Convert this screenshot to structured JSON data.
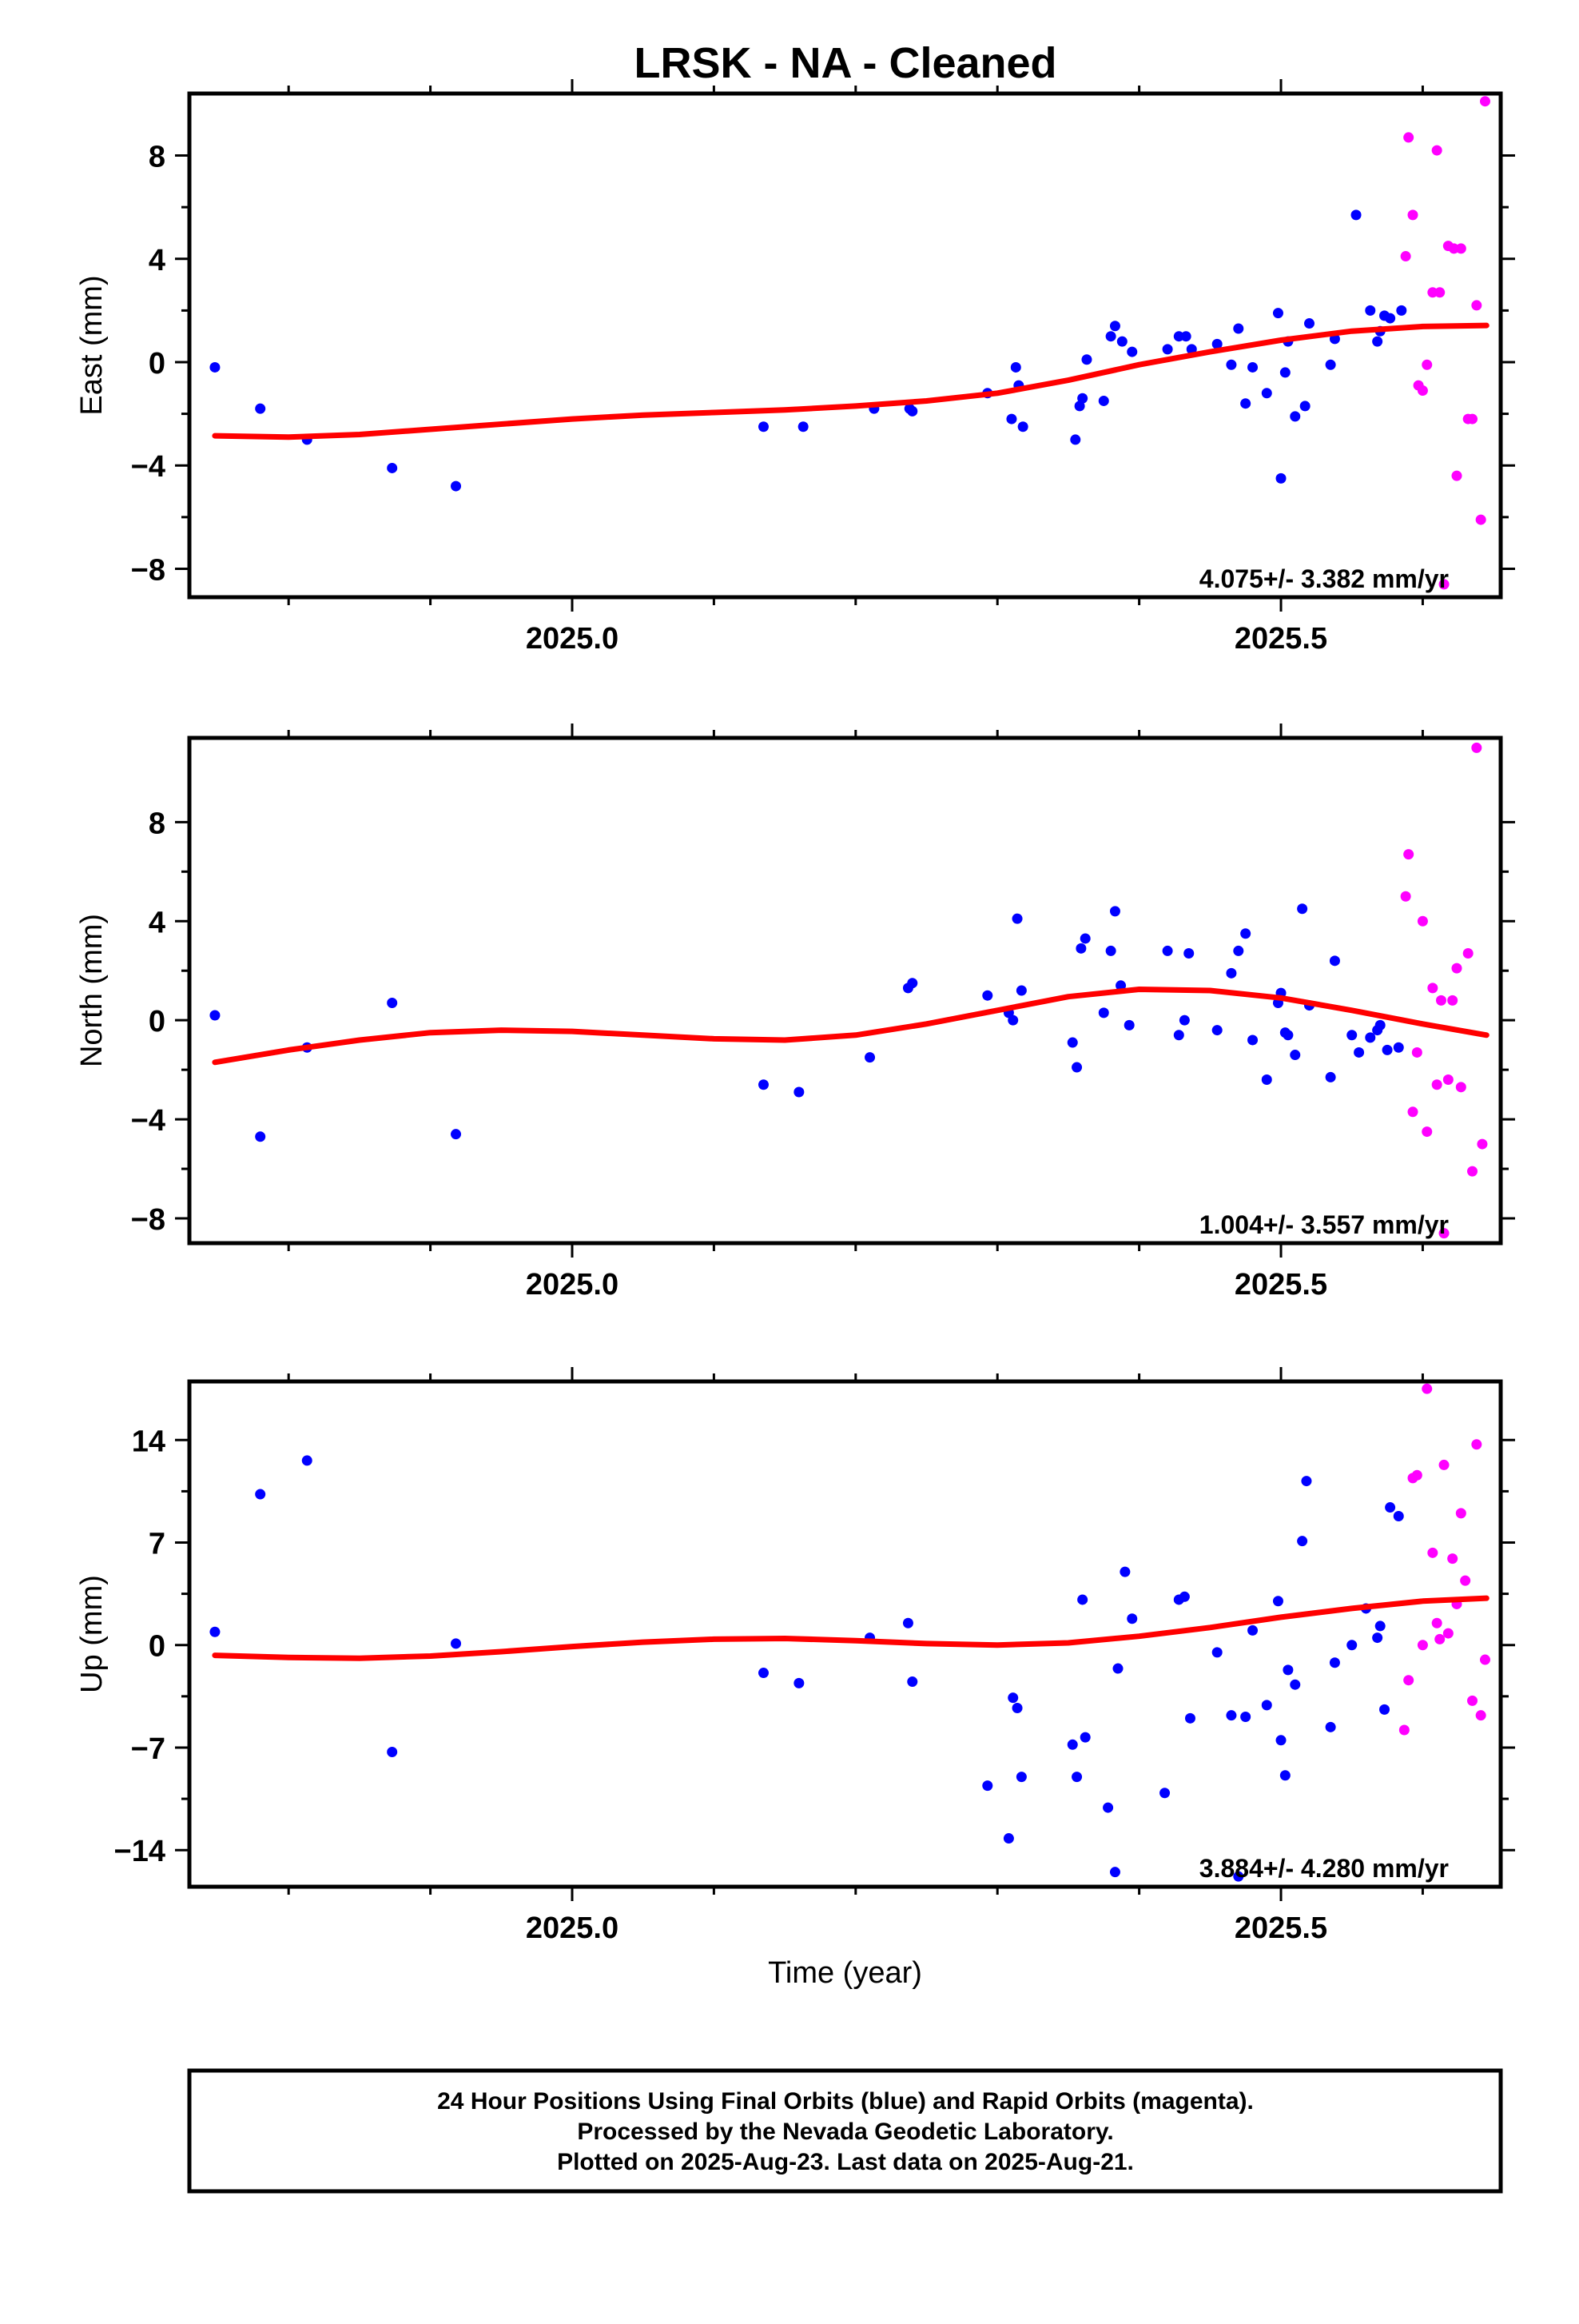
{
  "title": "LRSK  - NA - Cleaned",
  "colors": {
    "final": "#0000ff",
    "rapid": "#ff00ff",
    "fit": "#ff0000",
    "frame": "#000000"
  },
  "chart_data": [
    {
      "type": "scatter",
      "ylabel": "East (mm)",
      "xlabel": "",
      "rate": "4.075+/- 3.382 mm/yr",
      "xlim": [
        2024.73,
        2025.655
      ],
      "ylim": [
        -9.1,
        10.4
      ],
      "yticks": [
        -8,
        -4,
        0,
        4,
        8
      ],
      "xticks": [
        2025.0,
        2025.5
      ],
      "series": [
        {
          "color": "blue",
          "points": [
            [
              2024.748,
              -0.2
            ],
            [
              2024.78,
              -1.8
            ],
            [
              2024.813,
              -3.0
            ],
            [
              2024.873,
              -4.1
            ],
            [
              2024.918,
              -4.8
            ],
            [
              2025.135,
              -2.5
            ],
            [
              2025.163,
              -2.5
            ],
            [
              2025.213,
              -1.8
            ],
            [
              2025.238,
              -1.8
            ],
            [
              2025.24,
              -1.9
            ],
            [
              2025.293,
              -1.2
            ],
            [
              2025.31,
              -2.2
            ],
            [
              2025.313,
              -0.2
            ],
            [
              2025.315,
              -0.9
            ],
            [
              2025.318,
              -2.5
            ],
            [
              2025.355,
              -3.0
            ],
            [
              2025.358,
              -1.7
            ],
            [
              2025.36,
              -1.4
            ],
            [
              2025.363,
              0.1
            ],
            [
              2025.375,
              -1.5
            ],
            [
              2025.38,
              1.0
            ],
            [
              2025.383,
              1.4
            ],
            [
              2025.388,
              0.8
            ],
            [
              2025.395,
              0.4
            ],
            [
              2025.42,
              0.5
            ],
            [
              2025.428,
              1.0
            ],
            [
              2025.433,
              1.0
            ],
            [
              2025.437,
              0.5
            ],
            [
              2025.455,
              0.7
            ],
            [
              2025.465,
              -0.1
            ],
            [
              2025.47,
              1.3
            ],
            [
              2025.475,
              -1.6
            ],
            [
              2025.48,
              -0.2
            ],
            [
              2025.49,
              -1.2
            ],
            [
              2025.498,
              1.9
            ],
            [
              2025.5,
              -4.5
            ],
            [
              2025.503,
              -0.4
            ],
            [
              2025.505,
              0.8
            ],
            [
              2025.51,
              -2.1
            ],
            [
              2025.517,
              -1.7
            ],
            [
              2025.52,
              1.5
            ],
            [
              2025.535,
              -0.1
            ],
            [
              2025.538,
              0.9
            ],
            [
              2025.553,
              5.7
            ],
            [
              2025.563,
              2.0
            ],
            [
              2025.568,
              0.8
            ],
            [
              2025.57,
              1.2
            ],
            [
              2025.573,
              1.8
            ],
            [
              2025.577,
              1.7
            ],
            [
              2025.585,
              2.0
            ]
          ]
        },
        {
          "color": "magenta",
          "points": [
            [
              2025.588,
              4.1
            ],
            [
              2025.59,
              8.7
            ],
            [
              2025.593,
              5.7
            ],
            [
              2025.597,
              -0.9
            ],
            [
              2025.6,
              -1.1
            ],
            [
              2025.603,
              -0.1
            ],
            [
              2025.607,
              2.7
            ],
            [
              2025.61,
              8.2
            ],
            [
              2025.612,
              2.7
            ],
            [
              2025.615,
              -8.6
            ],
            [
              2025.618,
              4.5
            ],
            [
              2025.622,
              4.4
            ],
            [
              2025.624,
              -4.4
            ],
            [
              2025.627,
              4.4
            ],
            [
              2025.632,
              -2.2
            ],
            [
              2025.635,
              -2.2
            ],
            [
              2025.638,
              2.2
            ],
            [
              2025.641,
              -6.1
            ],
            [
              2025.644,
              10.1
            ]
          ]
        }
      ],
      "fit": {
        "x": [
          2024.748,
          2024.8,
          2024.85,
          2024.9,
          2024.95,
          2025.0,
          2025.05,
          2025.1,
          2025.15,
          2025.2,
          2025.25,
          2025.3,
          2025.35,
          2025.4,
          2025.45,
          2025.5,
          2025.55,
          2025.6,
          2025.645
        ],
        "y": [
          -2.85,
          -2.9,
          -2.8,
          -2.6,
          -2.4,
          -2.2,
          -2.05,
          -1.95,
          -1.85,
          -1.7,
          -1.5,
          -1.2,
          -0.7,
          -0.1,
          0.4,
          0.85,
          1.2,
          1.38,
          1.42
        ]
      }
    },
    {
      "type": "scatter",
      "ylabel": "North (mm)",
      "xlabel": "",
      "rate": "1.004+/- 3.557 mm/yr",
      "xlim": [
        2024.73,
        2025.655
      ],
      "ylim": [
        -9.0,
        11.4
      ],
      "yticks": [
        -8,
        -4,
        0,
        4,
        8
      ],
      "xticks": [
        2025.0,
        2025.5
      ],
      "series": [
        {
          "color": "blue",
          "points": [
            [
              2024.748,
              0.2
            ],
            [
              2024.78,
              -4.7
            ],
            [
              2024.813,
              -1.1
            ],
            [
              2024.873,
              0.7
            ],
            [
              2024.918,
              -4.6
            ],
            [
              2025.135,
              -2.6
            ],
            [
              2025.16,
              -2.9
            ],
            [
              2025.21,
              -1.5
            ],
            [
              2025.237,
              1.3
            ],
            [
              2025.24,
              1.5
            ],
            [
              2025.293,
              1.0
            ],
            [
              2025.308,
              0.3
            ],
            [
              2025.311,
              0.0
            ],
            [
              2025.314,
              4.1
            ],
            [
              2025.317,
              1.2
            ],
            [
              2025.353,
              -0.9
            ],
            [
              2025.356,
              -1.9
            ],
            [
              2025.359,
              2.9
            ],
            [
              2025.362,
              3.3
            ],
            [
              2025.375,
              0.3
            ],
            [
              2025.38,
              2.8
            ],
            [
              2025.383,
              4.4
            ],
            [
              2025.387,
              1.4
            ],
            [
              2025.393,
              -0.2
            ],
            [
              2025.42,
              2.8
            ],
            [
              2025.428,
              -0.6
            ],
            [
              2025.432,
              0.0
            ],
            [
              2025.435,
              2.7
            ],
            [
              2025.455,
              -0.4
            ],
            [
              2025.465,
              1.9
            ],
            [
              2025.47,
              2.8
            ],
            [
              2025.475,
              3.5
            ],
            [
              2025.48,
              -0.8
            ],
            [
              2025.49,
              -2.4
            ],
            [
              2025.498,
              0.7
            ],
            [
              2025.5,
              1.1
            ],
            [
              2025.503,
              -0.5
            ],
            [
              2025.505,
              -0.6
            ],
            [
              2025.51,
              -1.4
            ],
            [
              2025.515,
              4.5
            ],
            [
              2025.52,
              0.6
            ],
            [
              2025.535,
              -2.3
            ],
            [
              2025.538,
              2.4
            ],
            [
              2025.55,
              -0.6
            ],
            [
              2025.555,
              -1.3
            ],
            [
              2025.563,
              -0.7
            ],
            [
              2025.568,
              -0.4
            ],
            [
              2025.57,
              -0.2
            ],
            [
              2025.575,
              -1.2
            ],
            [
              2025.583,
              -1.1
            ]
          ]
        },
        {
          "color": "magenta",
          "points": [
            [
              2025.588,
              5.0
            ],
            [
              2025.59,
              6.7
            ],
            [
              2025.593,
              -3.7
            ],
            [
              2025.596,
              -1.3
            ],
            [
              2025.6,
              4.0
            ],
            [
              2025.603,
              -4.5
            ],
            [
              2025.607,
              1.3
            ],
            [
              2025.61,
              -2.6
            ],
            [
              2025.613,
              0.8
            ],
            [
              2025.615,
              -8.6
            ],
            [
              2025.618,
              -2.4
            ],
            [
              2025.621,
              0.8
            ],
            [
              2025.624,
              2.1
            ],
            [
              2025.627,
              -2.7
            ],
            [
              2025.632,
              2.7
            ],
            [
              2025.635,
              -6.1
            ],
            [
              2025.638,
              11.0
            ],
            [
              2025.642,
              -5.0
            ]
          ]
        }
      ],
      "fit": {
        "x": [
          2024.748,
          2024.8,
          2024.85,
          2024.9,
          2024.95,
          2025.0,
          2025.05,
          2025.1,
          2025.15,
          2025.2,
          2025.25,
          2025.3,
          2025.35,
          2025.4,
          2025.45,
          2025.5,
          2025.55,
          2025.6,
          2025.645
        ],
        "y": [
          -1.7,
          -1.2,
          -0.8,
          -0.5,
          -0.4,
          -0.45,
          -0.6,
          -0.75,
          -0.8,
          -0.6,
          -0.15,
          0.4,
          0.95,
          1.25,
          1.2,
          0.9,
          0.4,
          -0.15,
          -0.6
        ]
      }
    },
    {
      "type": "scatter",
      "ylabel": "Up (mm)",
      "xlabel": "Time (year)",
      "rate": "3.884+/- 4.280 mm/yr",
      "xlim": [
        2024.73,
        2025.655
      ],
      "ylim": [
        -16.5,
        18.0
      ],
      "yticks": [
        -14,
        -7,
        0,
        7,
        14
      ],
      "xticks": [
        2025.0,
        2025.5
      ],
      "series": [
        {
          "color": "blue",
          "points": [
            [
              2024.748,
              0.9
            ],
            [
              2024.78,
              10.3
            ],
            [
              2024.813,
              12.6
            ],
            [
              2024.873,
              -7.3
            ],
            [
              2024.918,
              0.1
            ],
            [
              2025.135,
              -1.9
            ],
            [
              2025.16,
              -2.6
            ],
            [
              2025.21,
              0.5
            ],
            [
              2025.237,
              1.5
            ],
            [
              2025.24,
              -2.5
            ],
            [
              2025.293,
              -9.6
            ],
            [
              2025.308,
              -13.2
            ],
            [
              2025.311,
              -3.6
            ],
            [
              2025.314,
              -4.3
            ],
            [
              2025.317,
              -9.0
            ],
            [
              2025.353,
              -6.8
            ],
            [
              2025.356,
              -9.0
            ],
            [
              2025.36,
              3.1
            ],
            [
              2025.362,
              -6.3
            ],
            [
              2025.378,
              -11.1
            ],
            [
              2025.383,
              -15.5
            ],
            [
              2025.385,
              -1.6
            ],
            [
              2025.39,
              5.0
            ],
            [
              2025.395,
              1.8
            ],
            [
              2025.418,
              -10.1
            ],
            [
              2025.428,
              3.1
            ],
            [
              2025.432,
              3.3
            ],
            [
              2025.436,
              -5.0
            ],
            [
              2025.455,
              -0.5
            ],
            [
              2025.465,
              -4.8
            ],
            [
              2025.47,
              -15.8
            ],
            [
              2025.475,
              -4.9
            ],
            [
              2025.48,
              1.0
            ],
            [
              2025.49,
              -4.1
            ],
            [
              2025.498,
              3.0
            ],
            [
              2025.5,
              -6.5
            ],
            [
              2025.503,
              -8.9
            ],
            [
              2025.505,
              -1.7
            ],
            [
              2025.51,
              -2.7
            ],
            [
              2025.515,
              7.1
            ],
            [
              2025.518,
              11.2
            ],
            [
              2025.535,
              -5.6
            ],
            [
              2025.538,
              -1.2
            ],
            [
              2025.55,
              0.0
            ],
            [
              2025.56,
              2.5
            ],
            [
              2025.568,
              0.5
            ],
            [
              2025.57,
              1.3
            ],
            [
              2025.573,
              -4.4
            ],
            [
              2025.577,
              9.4
            ],
            [
              2025.583,
              8.8
            ]
          ]
        },
        {
          "color": "magenta",
          "points": [
            [
              2025.587,
              -5.8
            ],
            [
              2025.59,
              -2.4
            ],
            [
              2025.593,
              11.4
            ],
            [
              2025.596,
              11.6
            ],
            [
              2025.6,
              0.0
            ],
            [
              2025.603,
              17.5
            ],
            [
              2025.607,
              6.3
            ],
            [
              2025.61,
              1.5
            ],
            [
              2025.612,
              0.4
            ],
            [
              2025.615,
              12.3
            ],
            [
              2025.618,
              0.8
            ],
            [
              2025.621,
              5.9
            ],
            [
              2025.624,
              2.8
            ],
            [
              2025.627,
              9.0
            ],
            [
              2025.63,
              4.4
            ],
            [
              2025.635,
              -3.8
            ],
            [
              2025.638,
              13.7
            ],
            [
              2025.641,
              -4.8
            ],
            [
              2025.644,
              -1.0
            ]
          ]
        }
      ],
      "fit": {
        "x": [
          2024.748,
          2024.8,
          2024.85,
          2024.9,
          2024.95,
          2025.0,
          2025.05,
          2025.1,
          2025.15,
          2025.2,
          2025.25,
          2025.3,
          2025.35,
          2025.4,
          2025.45,
          2025.5,
          2025.55,
          2025.6,
          2025.645
        ],
        "y": [
          -0.7,
          -0.85,
          -0.9,
          -0.75,
          -0.45,
          -0.1,
          0.2,
          0.4,
          0.45,
          0.3,
          0.1,
          0.0,
          0.15,
          0.6,
          1.2,
          1.9,
          2.5,
          3.0,
          3.2
        ]
      }
    }
  ],
  "footer": {
    "line1": "24 Hour Positions Using Final Orbits (blue) and Rapid Orbits (magenta).",
    "line2": "Processed by the Nevada Geodetic Laboratory.",
    "line3": "Plotted on 2025-Aug-23. Last data on 2025-Aug-21."
  }
}
